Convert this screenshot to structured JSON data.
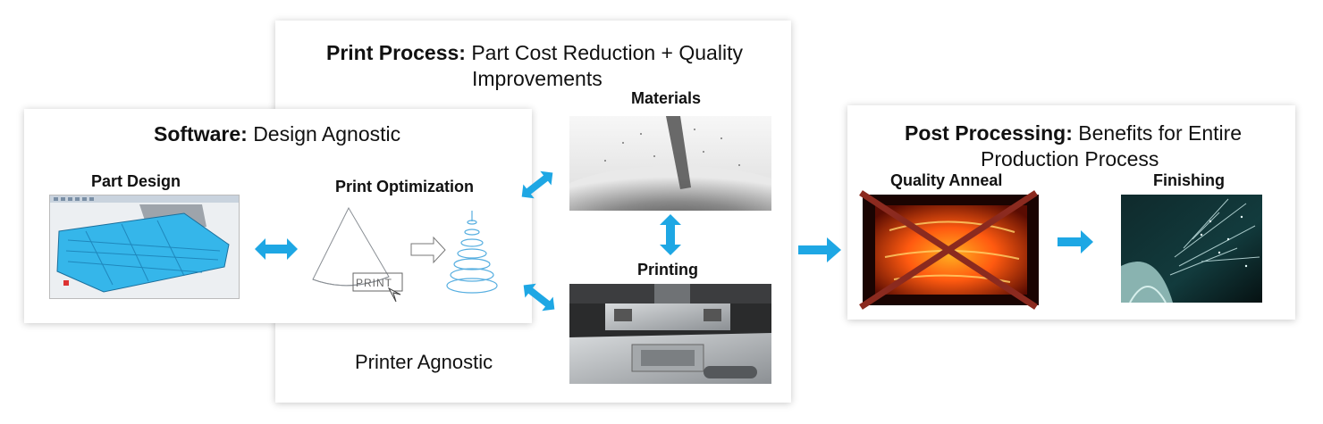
{
  "print_process": {
    "title_bold": "Print Process:",
    "title_rest_1": "Part Cost Reduction + Quality",
    "title_rest_2": "Improvements",
    "materials_label": "Materials",
    "printing_label": "Printing",
    "printer_agnostic": "Printer Agnostic"
  },
  "software": {
    "title_bold": "Software:",
    "title_rest": "Design Agnostic",
    "part_design_label": "Part Design",
    "print_optimization_label": "Print Optimization",
    "print_button_text": "PRINT"
  },
  "post_processing": {
    "title_bold": "Post Processing:",
    "title_rest_1": "Benefits for Entire",
    "title_rest_2": "Production Process",
    "quality_anneal_label": "Quality Anneal",
    "finishing_label": "Finishing"
  },
  "colors": {
    "arrow": "#1ea7e4",
    "cross": "#8b2a1f",
    "part_blue": "#35b6ea"
  },
  "icons": {
    "double_arrow": "double-arrow-icon",
    "right_arrow": "right-arrow-icon",
    "cross": "cross-out-icon"
  }
}
